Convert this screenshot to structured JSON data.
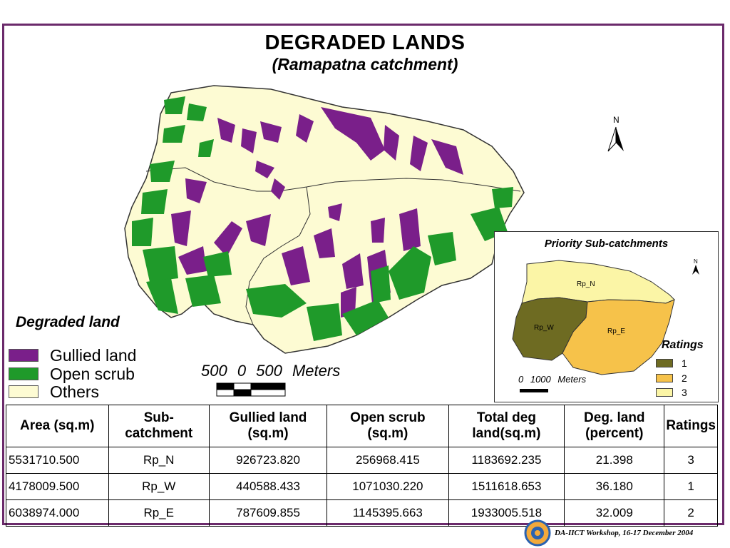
{
  "title": "DEGRADED LANDS",
  "subtitle": "(Ramapatna catchment)",
  "north_label": "N",
  "legend": {
    "title": "Degraded land",
    "items": [
      {
        "label": "Gullied land",
        "color": "#7a1f8a"
      },
      {
        "label": "Open scrub",
        "color": "#1f9a2a"
      },
      {
        "label": "Others",
        "color": "#fdfbd3"
      }
    ]
  },
  "scale": {
    "text": "500 0 500 Meters"
  },
  "inset": {
    "title": "Priority Sub-catchments",
    "north_label": "N",
    "regions": [
      {
        "label": "Rp_N",
        "rating": "3"
      },
      {
        "label": "Rp_W",
        "rating": "1"
      },
      {
        "label": "Rp_E",
        "rating": "2"
      }
    ],
    "ratings_title": "Ratings",
    "ratings": [
      {
        "label": "1",
        "color": "#6e6b22"
      },
      {
        "label": "2",
        "color": "#f6c24a"
      },
      {
        "label": "3",
        "color": "#fbf5a6"
      }
    ],
    "scale_text": "0 1000 Meters"
  },
  "table": {
    "headers": [
      "Area (sq.m)",
      "Sub-catchment",
      "Gullied land (sq.m)",
      "Open scrub (sq.m)",
      "Total deg land(sq.m)",
      "Deg. land (percent)",
      "Ratings"
    ],
    "rows": [
      [
        "5531710.500",
        "Rp_N",
        "926723.820",
        "256968.415",
        "1183692.235",
        "21.398",
        "3"
      ],
      [
        "4178009.500",
        "Rp_W",
        "440588.433",
        "1071030.220",
        "1511618.653",
        "36.180",
        "1"
      ],
      [
        "6038974.000",
        "Rp_E",
        "787609.855",
        "1145395.663",
        "1933005.518",
        "32.009",
        "2"
      ]
    ]
  },
  "footer": "DA-IICT Workshop, 16-17 December 2004"
}
